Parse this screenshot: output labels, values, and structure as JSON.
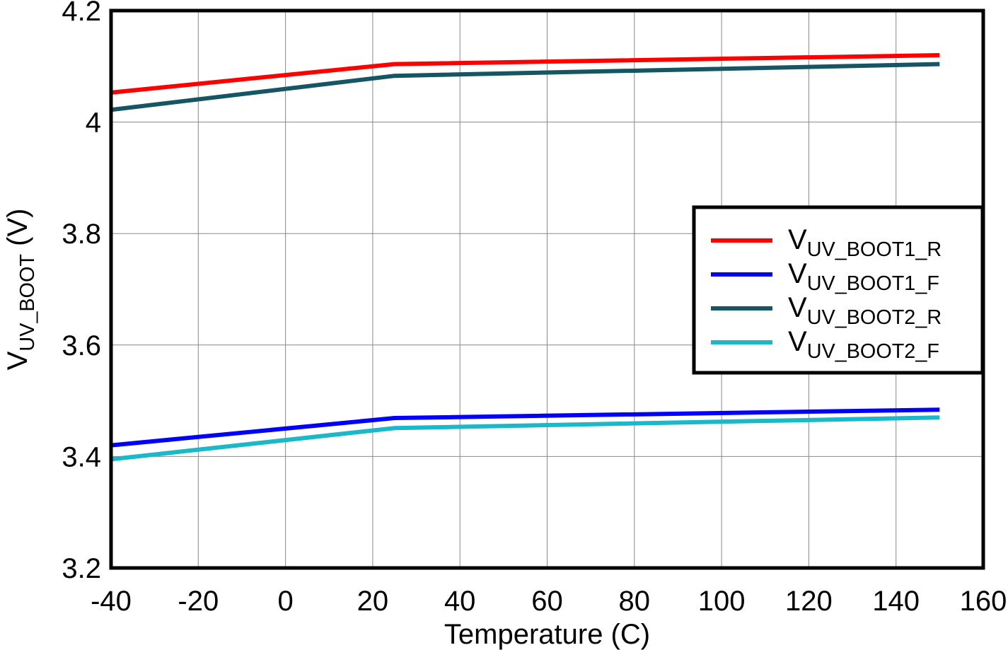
{
  "chart_data": {
    "type": "line",
    "x_label": "Temperature (C)",
    "y_label": "VUV_BOOT (V)",
    "x": [
      -40,
      25,
      150
    ],
    "series": [
      {
        "name": "VUV_BOOT1_R",
        "color": "#ff0000",
        "values": [
          4.053,
          4.104,
          4.12
        ]
      },
      {
        "name": "VUV_BOOT1_F",
        "color": "#0000ff",
        "values": [
          3.42,
          3.469,
          3.484
        ]
      },
      {
        "name": "VUV_BOOT2_R",
        "color": "#165563",
        "values": [
          4.022,
          4.083,
          4.104
        ]
      },
      {
        "name": "VUV_BOOT2_F",
        "color": "#1ab8c8",
        "values": [
          3.395,
          3.451,
          3.47
        ]
      }
    ],
    "xlim": [
      -40,
      160
    ],
    "xticks": [
      -40,
      -20,
      0,
      20,
      40,
      60,
      80,
      100,
      120,
      140,
      160
    ],
    "ylim": [
      3.2,
      4.2
    ],
    "yticks": [
      3.2,
      3.4,
      3.6,
      3.8,
      4,
      4.2
    ],
    "grid": true,
    "legend": "right"
  }
}
